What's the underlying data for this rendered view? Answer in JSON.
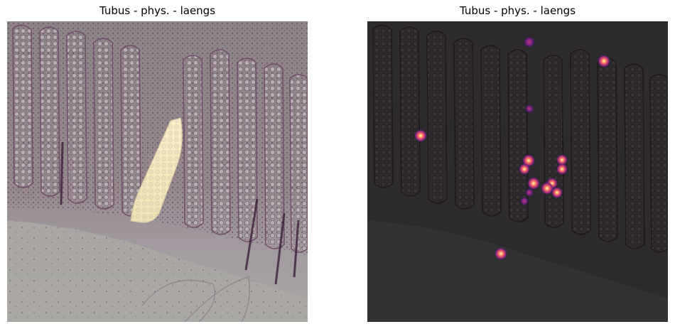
{
  "figure": {
    "panels": [
      {
        "title": "Tubus - phys. - laengs",
        "image": "histology-colon-crypts",
        "overlay": "tubule-segmentation-mask",
        "overlay_color": "#f5edc2"
      },
      {
        "title": "Tubus - phys. - laengs",
        "image": "histology-colon-crypts-dimmed",
        "overlay": "point-heatmap",
        "overlay_colormap": "magma"
      }
    ]
  }
}
